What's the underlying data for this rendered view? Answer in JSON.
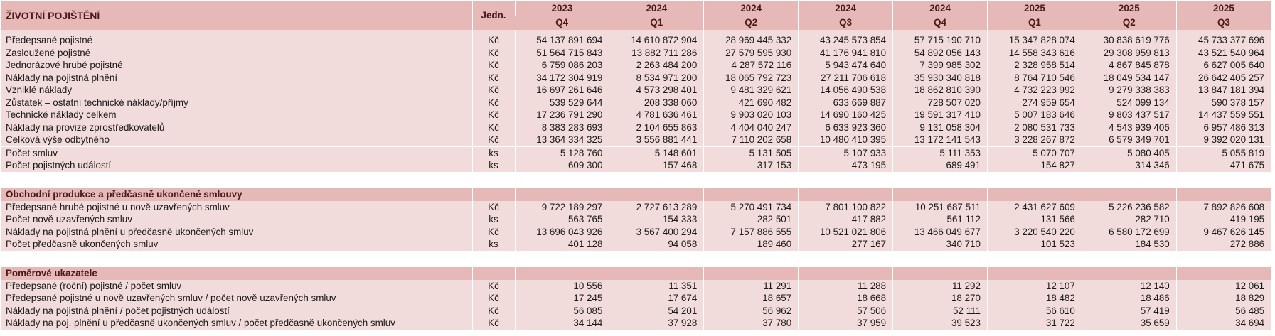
{
  "header": {
    "title": "ŽIVOTNÍ POJIŠTĚNÍ",
    "unit_label": "Jedn.",
    "periods": [
      {
        "year": "2023",
        "quarter": "Q4"
      },
      {
        "year": "2024",
        "quarter": "Q1"
      },
      {
        "year": "2024",
        "quarter": "Q2"
      },
      {
        "year": "2024",
        "quarter": "Q3"
      },
      {
        "year": "2024",
        "quarter": "Q4"
      },
      {
        "year": "2025",
        "quarter": "Q1"
      },
      {
        "year": "2025",
        "quarter": "Q2"
      },
      {
        "year": "2025",
        "quarter": "Q3"
      }
    ]
  },
  "main_rows": [
    {
      "label": "Předepsané pojistné",
      "unit": "Kč",
      "values": [
        "54 137 891 694",
        "14 610 872 904",
        "28 969 445 332",
        "43 245 573 854",
        "57 715 190 710",
        "15 347 828 074",
        "30 838 619 776",
        "45 733 377 696"
      ]
    },
    {
      "label": "Zasloužené pojistné",
      "unit": "Kč",
      "values": [
        "51 564 715 843",
        "13 882 711 286",
        "27 579 595 930",
        "41 176 941 810",
        "54 892 056 143",
        "14 558 343 616",
        "29 308 959 813",
        "43 521 540 964"
      ]
    },
    {
      "label": "Jednorázové hrubé pojistné",
      "unit": "Kč",
      "values": [
        "6 759 086 203",
        "2 263 484 200",
        "4 287 572 116",
        "5 943 474 640",
        "7 399 985 302",
        "2 328 958 514",
        "4 867 845 878",
        "6 627 005 640"
      ]
    },
    {
      "label": "Náklady na pojistná plnění",
      "unit": "Kč",
      "values": [
        "34 172 304 919",
        "8 534 971 200",
        "18 065 792 723",
        "27 211 706 618",
        "35 930 340 818",
        "8 764 710 546",
        "18 049 534 147",
        "26 642 405 257"
      ]
    },
    {
      "label": "Vzniklé náklady",
      "unit": "Kč",
      "values": [
        "16 697 261 646",
        "4 573 298 401",
        "9 481 329 621",
        "14 056 490 538",
        "18 862 810 390",
        "4 732 223 992",
        "9 279 338 383",
        "13 847 181 394"
      ]
    },
    {
      "label": "Zůstatek – ostatní technické náklady/příjmy",
      "unit": "Kč",
      "values": [
        "539 529 644",
        "208 338 060",
        "421 690 482",
        "633 669 887",
        "728 507 020",
        "274 959 654",
        "524 099 134",
        "590 378 157"
      ]
    },
    {
      "label": "Technické náklady celkem",
      "unit": "Kč",
      "values": [
        "17 236 791 290",
        "4 781 636 461",
        "9 903 020 103",
        "14 690 160 425",
        "19 591 317 410",
        "5 007 183 646",
        "9 803 437 517",
        "14 437 559 551"
      ]
    },
    {
      "label": "Náklady na provize zprostředkovatelů",
      "unit": "Kč",
      "values": [
        "8 383 283 693",
        "2 104 655 863",
        "4 404 040 247",
        "6 633 923 360",
        "9 131 058 304",
        "2 080 531 733",
        "4 543 939 406",
        "6 957 486 313"
      ]
    },
    {
      "label": "Celková výše odbytného",
      "unit": "Kč",
      "values": [
        "13 364 334 325",
        "3 556 881 441",
        "7 110 202 658",
        "10 480 410 395",
        "13 172 141 543",
        "3 228 267 872",
        "6 579 349 701",
        "9 392 020 131"
      ]
    }
  ],
  "count_rows": [
    {
      "label": "Počet smluv",
      "unit": "ks",
      "values": [
        "5 128 760",
        "5 148 601",
        "5 131 505",
        "5 107 933",
        "5 111 353",
        "5 070 707",
        "5 080 405",
        "5 055 819"
      ]
    },
    {
      "label": "Počet pojistných událostí",
      "unit": "ks",
      "values": [
        "609 300",
        "157 468",
        "317 153",
        "473 195",
        "689 491",
        "154 827",
        "314 346",
        "471 675"
      ]
    }
  ],
  "section2": {
    "title": "Obchodní produkce a předčasně ukončené smlouvy",
    "rows": [
      {
        "label": "Předepsané hrubé pojistné u nově uzavřených smluv",
        "unit": "Kč",
        "values": [
          "9 722 189 297",
          "2 727 613 289",
          "5 270 491 734",
          "7 801 100 822",
          "10 251 687 511",
          "2 431 627 609",
          "5 226 236 582",
          "7 892 826 608"
        ]
      },
      {
        "label": "Počet nově uzavřených smluv",
        "unit": "ks",
        "values": [
          "563 765",
          "154 333",
          "282 501",
          "417 882",
          "561 112",
          "131 566",
          "282 710",
          "419 195"
        ]
      },
      {
        "label": "Náklady na pojistná plnění u předčasně ukončených smluv",
        "unit": "Kč",
        "values": [
          "13 696 043 926",
          "3 567 400 294",
          "7 157 886 555",
          "10 521 021 806",
          "13 466 049 677",
          "3 220 540 220",
          "6 580 172 699",
          "9 467 626 145"
        ]
      },
      {
        "label": "Počet předčasně ukončených smluv",
        "unit": "ks",
        "values": [
          "401 128",
          "94 058",
          "189 460",
          "277 167",
          "340 710",
          "101 523",
          "184 530",
          "272 886"
        ]
      }
    ]
  },
  "section3": {
    "title": "Poměrové ukazatele",
    "rows": [
      {
        "label": "Předepsané (roční) pojistné / počet smluv",
        "unit": "Kč",
        "values": [
          "10 556",
          "11 351",
          "11 291",
          "11 288",
          "11 292",
          "12 107",
          "12 140",
          "12 061"
        ]
      },
      {
        "label": "Předepsané pojistné u nově uzavřených smluv / počet nově uzavřených smluv",
        "unit": "Kč",
        "values": [
          "17 245",
          "17 674",
          "18 657",
          "18 668",
          "18 270",
          "18 482",
          "18 486",
          "18 829"
        ]
      },
      {
        "label": "Náklady na pojistná plnění / počet pojistných událostí",
        "unit": "Kč",
        "values": [
          "56 085",
          "54 201",
          "56 962",
          "57 506",
          "52 111",
          "56 610",
          "57 419",
          "56 485"
        ]
      },
      {
        "label": "Náklady na poj. plnění u předčasně ukončených smluv / počet předčasně ukončených smluv",
        "unit": "Kč",
        "values": [
          "34 144",
          "37 928",
          "37 780",
          "37 959",
          "39 523",
          "31 722",
          "35 659",
          "34 694"
        ]
      }
    ]
  },
  "colors": {
    "header_bg": "#e6b8b8",
    "body_bg": "#f2dcdb",
    "header_text": "#4a1a1a"
  }
}
